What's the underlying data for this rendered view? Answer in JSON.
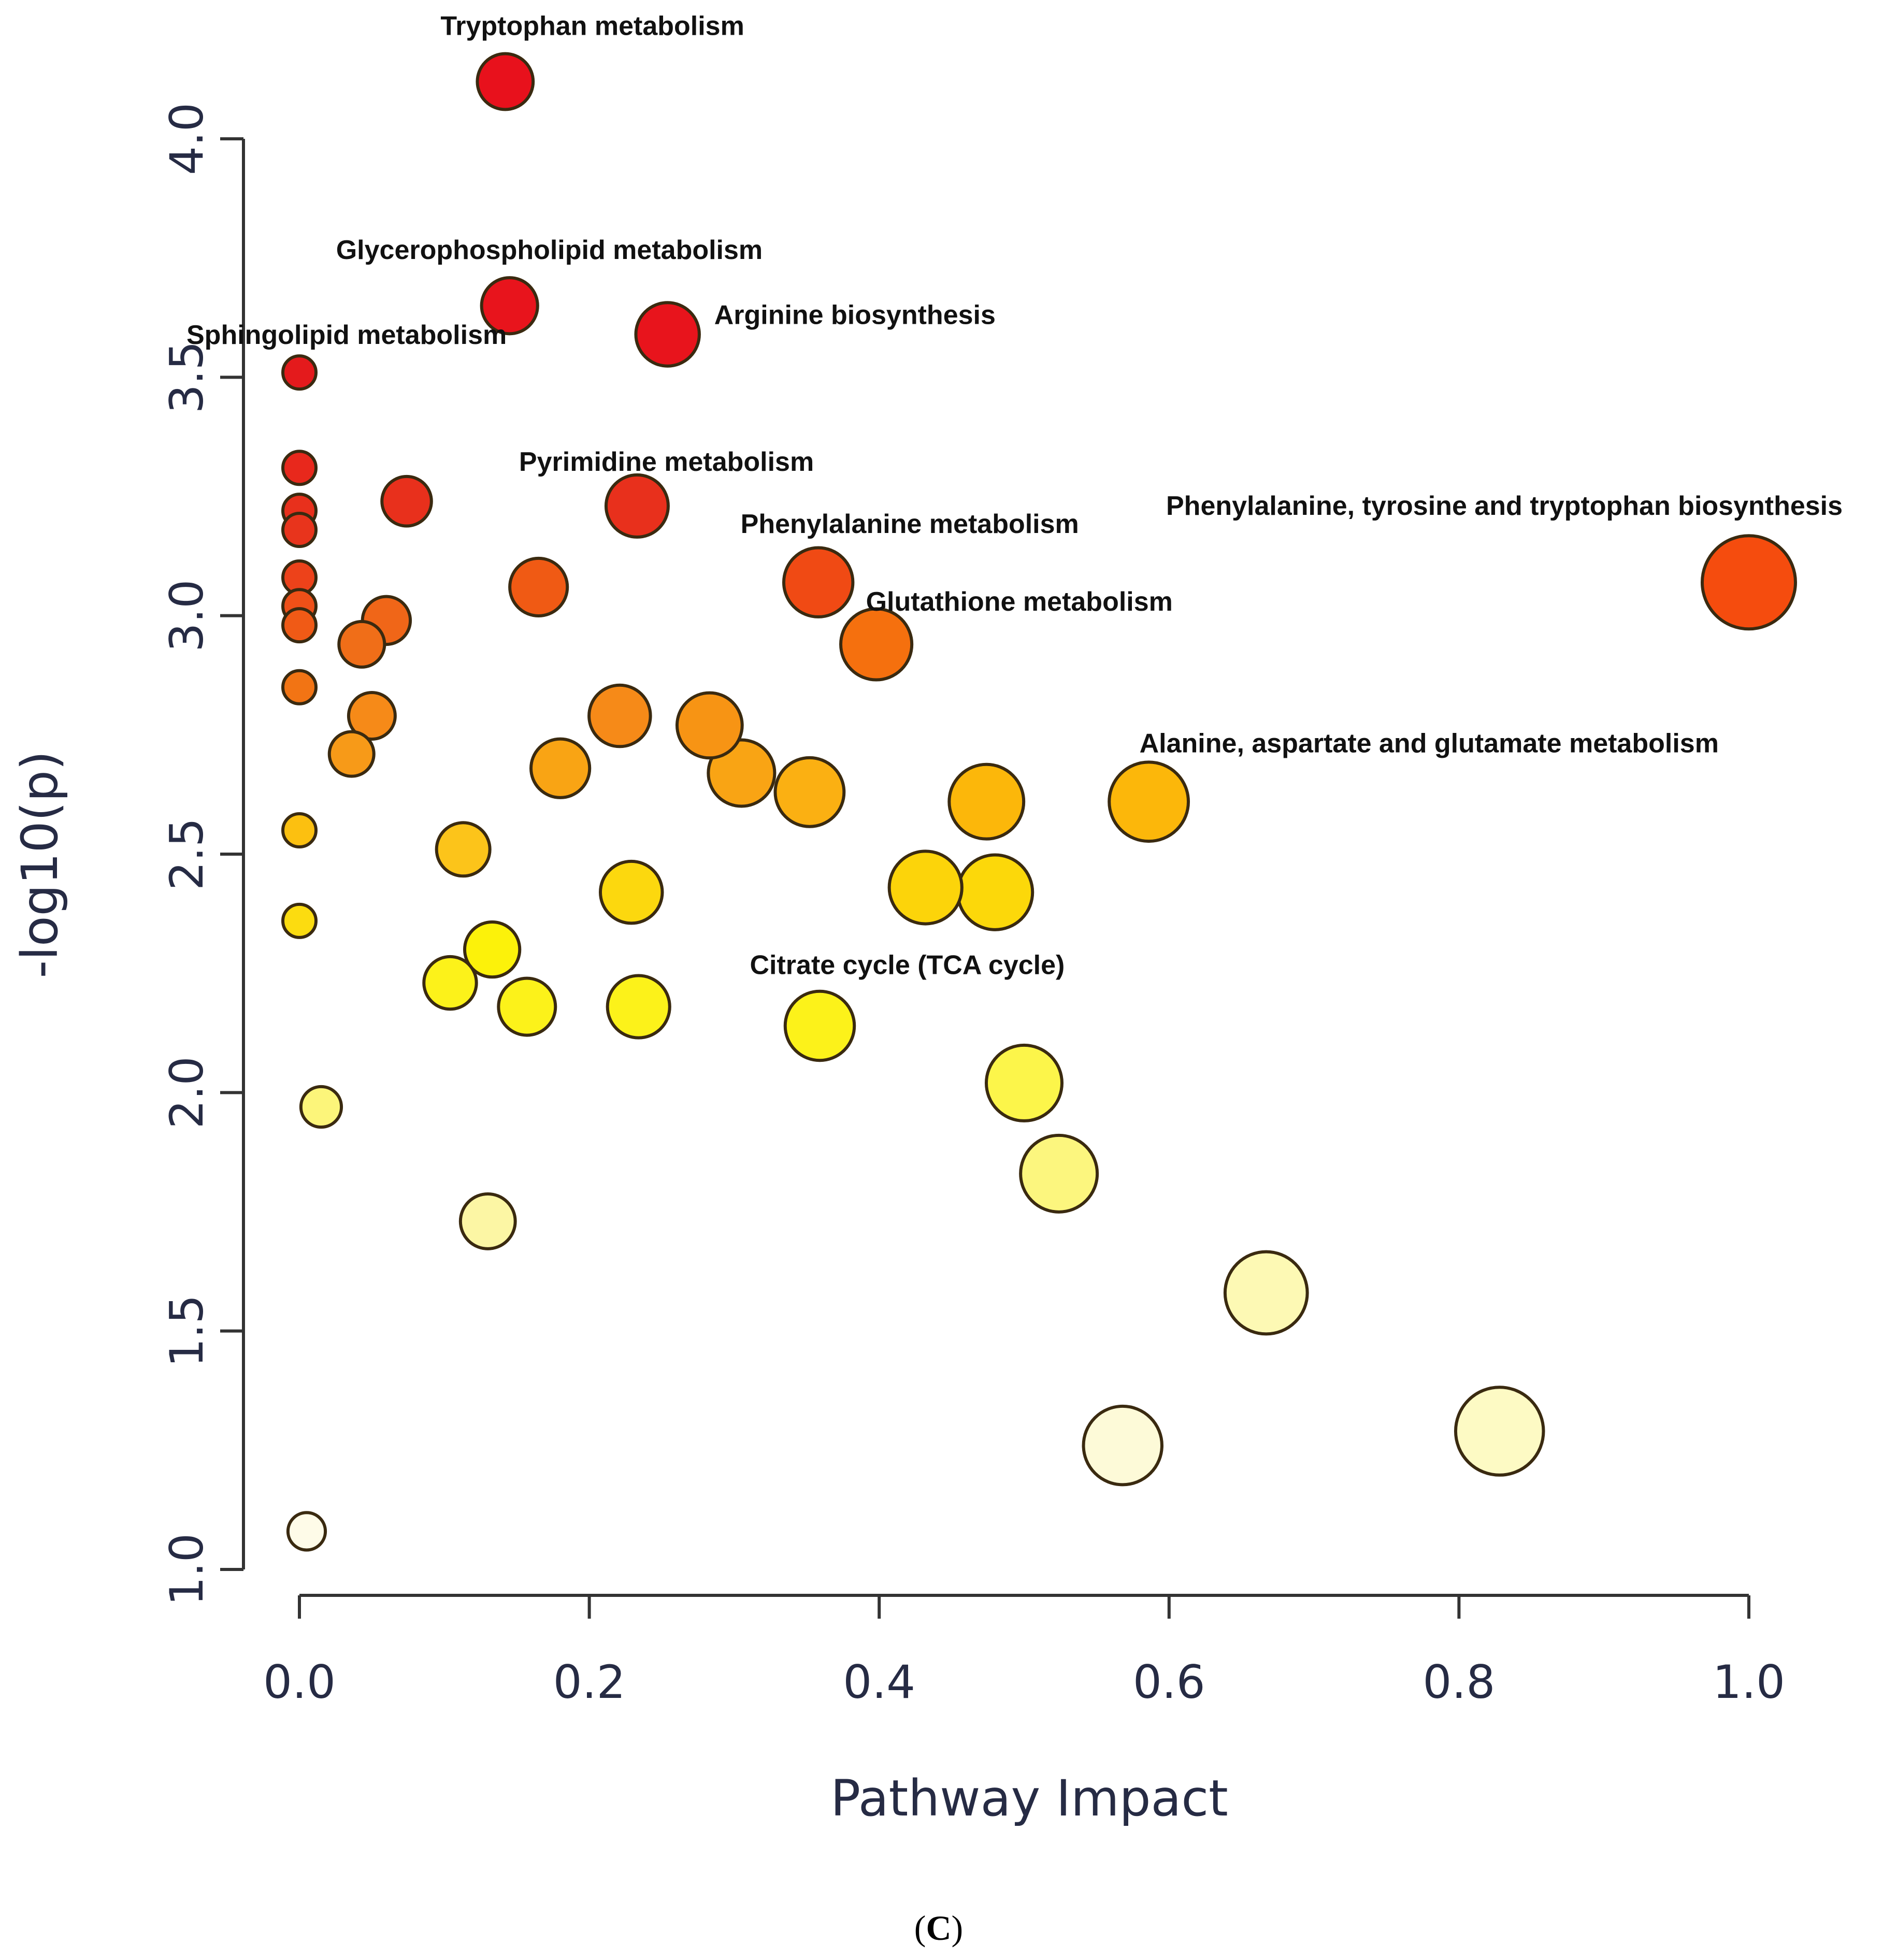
{
  "chart_data": {
    "type": "scatter",
    "title": "",
    "xlabel": "Pathway Impact",
    "ylabel": "-log10(p)",
    "xlim": [
      0.0,
      1.0
    ],
    "ylim": [
      1.0,
      4.0
    ],
    "x_ticks": [
      "0.0",
      "0.2",
      "0.4",
      "0.6",
      "0.8",
      "1.0"
    ],
    "y_ticks": [
      "1.0",
      "1.5",
      "2.0",
      "2.5",
      "3.0",
      "3.5",
      "4.0"
    ],
    "caption_prefix": "(",
    "caption_letter": "C",
    "caption_suffix": ")",
    "encoding": "bubble size ~ pathway impact; color ~ -log10(p) (red = high, pale yellow = low)",
    "points": [
      {
        "x": 0.142,
        "y": 4.12,
        "color": "#e8111c",
        "label": "Tryptophan metabolism"
      },
      {
        "x": 0.145,
        "y": 3.65,
        "color": "#e8141c",
        "label": "Glycerophospholipid metabolism"
      },
      {
        "x": 0.254,
        "y": 3.59,
        "color": "#e8141c",
        "label": "Arginine biosynthesis"
      },
      {
        "x": 0.0,
        "y": 3.51,
        "color": "#e41a1c",
        "label": "Sphingolipid metabolism"
      },
      {
        "x": 0.233,
        "y": 3.23,
        "color": "#e8301c",
        "label": "Pyrimidine metabolism"
      },
      {
        "x": 0.358,
        "y": 3.07,
        "color": "#f04a14",
        "label": "Phenylalanine metabolism"
      },
      {
        "x": 1.0,
        "y": 3.07,
        "color": "#f54c0e",
        "label": "Phenylalanine, tyrosine and tryptophan biosynthesis"
      },
      {
        "x": 0.398,
        "y": 2.94,
        "color": "#f5700e",
        "label": "Glutathione metabolism"
      },
      {
        "x": 0.586,
        "y": 2.61,
        "color": "#fcb70a",
        "label": "Alanine, aspartate and glutamate metabolism"
      },
      {
        "x": 0.359,
        "y": 2.14,
        "color": "#fcf21a",
        "label": "Citrate cycle (TCA cycle)"
      },
      {
        "x": 0.0,
        "y": 3.31,
        "color": "#e8281c",
        "label": ""
      },
      {
        "x": 0.0,
        "y": 3.22,
        "color": "#e8301c",
        "label": ""
      },
      {
        "x": 0.0,
        "y": 3.18,
        "color": "#e8341c",
        "label": ""
      },
      {
        "x": 0.0,
        "y": 3.08,
        "color": "#ed421a",
        "label": ""
      },
      {
        "x": 0.0,
        "y": 3.02,
        "color": "#ef5018",
        "label": ""
      },
      {
        "x": 0.0,
        "y": 2.98,
        "color": "#f05a16",
        "label": ""
      },
      {
        "x": 0.0,
        "y": 2.85,
        "color": "#f27414",
        "label": ""
      },
      {
        "x": 0.0,
        "y": 2.55,
        "color": "#fcc010",
        "label": ""
      },
      {
        "x": 0.0,
        "y": 2.36,
        "color": "#fcdc10",
        "label": ""
      },
      {
        "x": 0.074,
        "y": 3.24,
        "color": "#e8301c",
        "label": ""
      },
      {
        "x": 0.165,
        "y": 3.06,
        "color": "#f05a14",
        "label": ""
      },
      {
        "x": 0.06,
        "y": 2.99,
        "color": "#f06618",
        "label": ""
      },
      {
        "x": 0.043,
        "y": 2.94,
        "color": "#f06e18",
        "label": ""
      },
      {
        "x": 0.05,
        "y": 2.79,
        "color": "#f68a18",
        "label": ""
      },
      {
        "x": 0.036,
        "y": 2.71,
        "color": "#f79a18",
        "label": ""
      },
      {
        "x": 0.221,
        "y": 2.79,
        "color": "#f68a18",
        "label": ""
      },
      {
        "x": 0.283,
        "y": 2.77,
        "color": "#f79414",
        "label": ""
      },
      {
        "x": 0.18,
        "y": 2.68,
        "color": "#f9a414",
        "label": ""
      },
      {
        "x": 0.305,
        "y": 2.67,
        "color": "#f9a414",
        "label": ""
      },
      {
        "x": 0.352,
        "y": 2.63,
        "color": "#fbb012",
        "label": ""
      },
      {
        "x": 0.474,
        "y": 2.61,
        "color": "#fcb70a",
        "label": ""
      },
      {
        "x": 0.113,
        "y": 2.51,
        "color": "#fcc41a",
        "label": ""
      },
      {
        "x": 0.229,
        "y": 2.42,
        "color": "#fcd80e",
        "label": ""
      },
      {
        "x": 0.432,
        "y": 2.43,
        "color": "#fcd40a",
        "label": ""
      },
      {
        "x": 0.48,
        "y": 2.42,
        "color": "#fcd80a",
        "label": ""
      },
      {
        "x": 0.133,
        "y": 2.3,
        "color": "#fcf20a",
        "label": ""
      },
      {
        "x": 0.104,
        "y": 2.23,
        "color": "#fcf21a",
        "label": ""
      },
      {
        "x": 0.157,
        "y": 2.18,
        "color": "#fcf21a",
        "label": ""
      },
      {
        "x": 0.234,
        "y": 2.18,
        "color": "#fcf21a",
        "label": ""
      },
      {
        "x": 0.015,
        "y": 1.97,
        "color": "#fcf57a",
        "label": ""
      },
      {
        "x": 0.5,
        "y": 2.02,
        "color": "#fcf54a",
        "label": ""
      },
      {
        "x": 0.524,
        "y": 1.83,
        "color": "#fcf67e",
        "label": ""
      },
      {
        "x": 0.13,
        "y": 1.73,
        "color": "#fcf6a4",
        "label": ""
      },
      {
        "x": 0.667,
        "y": 1.58,
        "color": "#fdf9b4",
        "label": ""
      },
      {
        "x": 0.568,
        "y": 1.26,
        "color": "#fdfad8",
        "label": ""
      },
      {
        "x": 0.828,
        "y": 1.29,
        "color": "#fdfac4",
        "label": ""
      },
      {
        "x": 0.005,
        "y": 1.08,
        "color": "#fefbe8",
        "label": ""
      }
    ]
  }
}
